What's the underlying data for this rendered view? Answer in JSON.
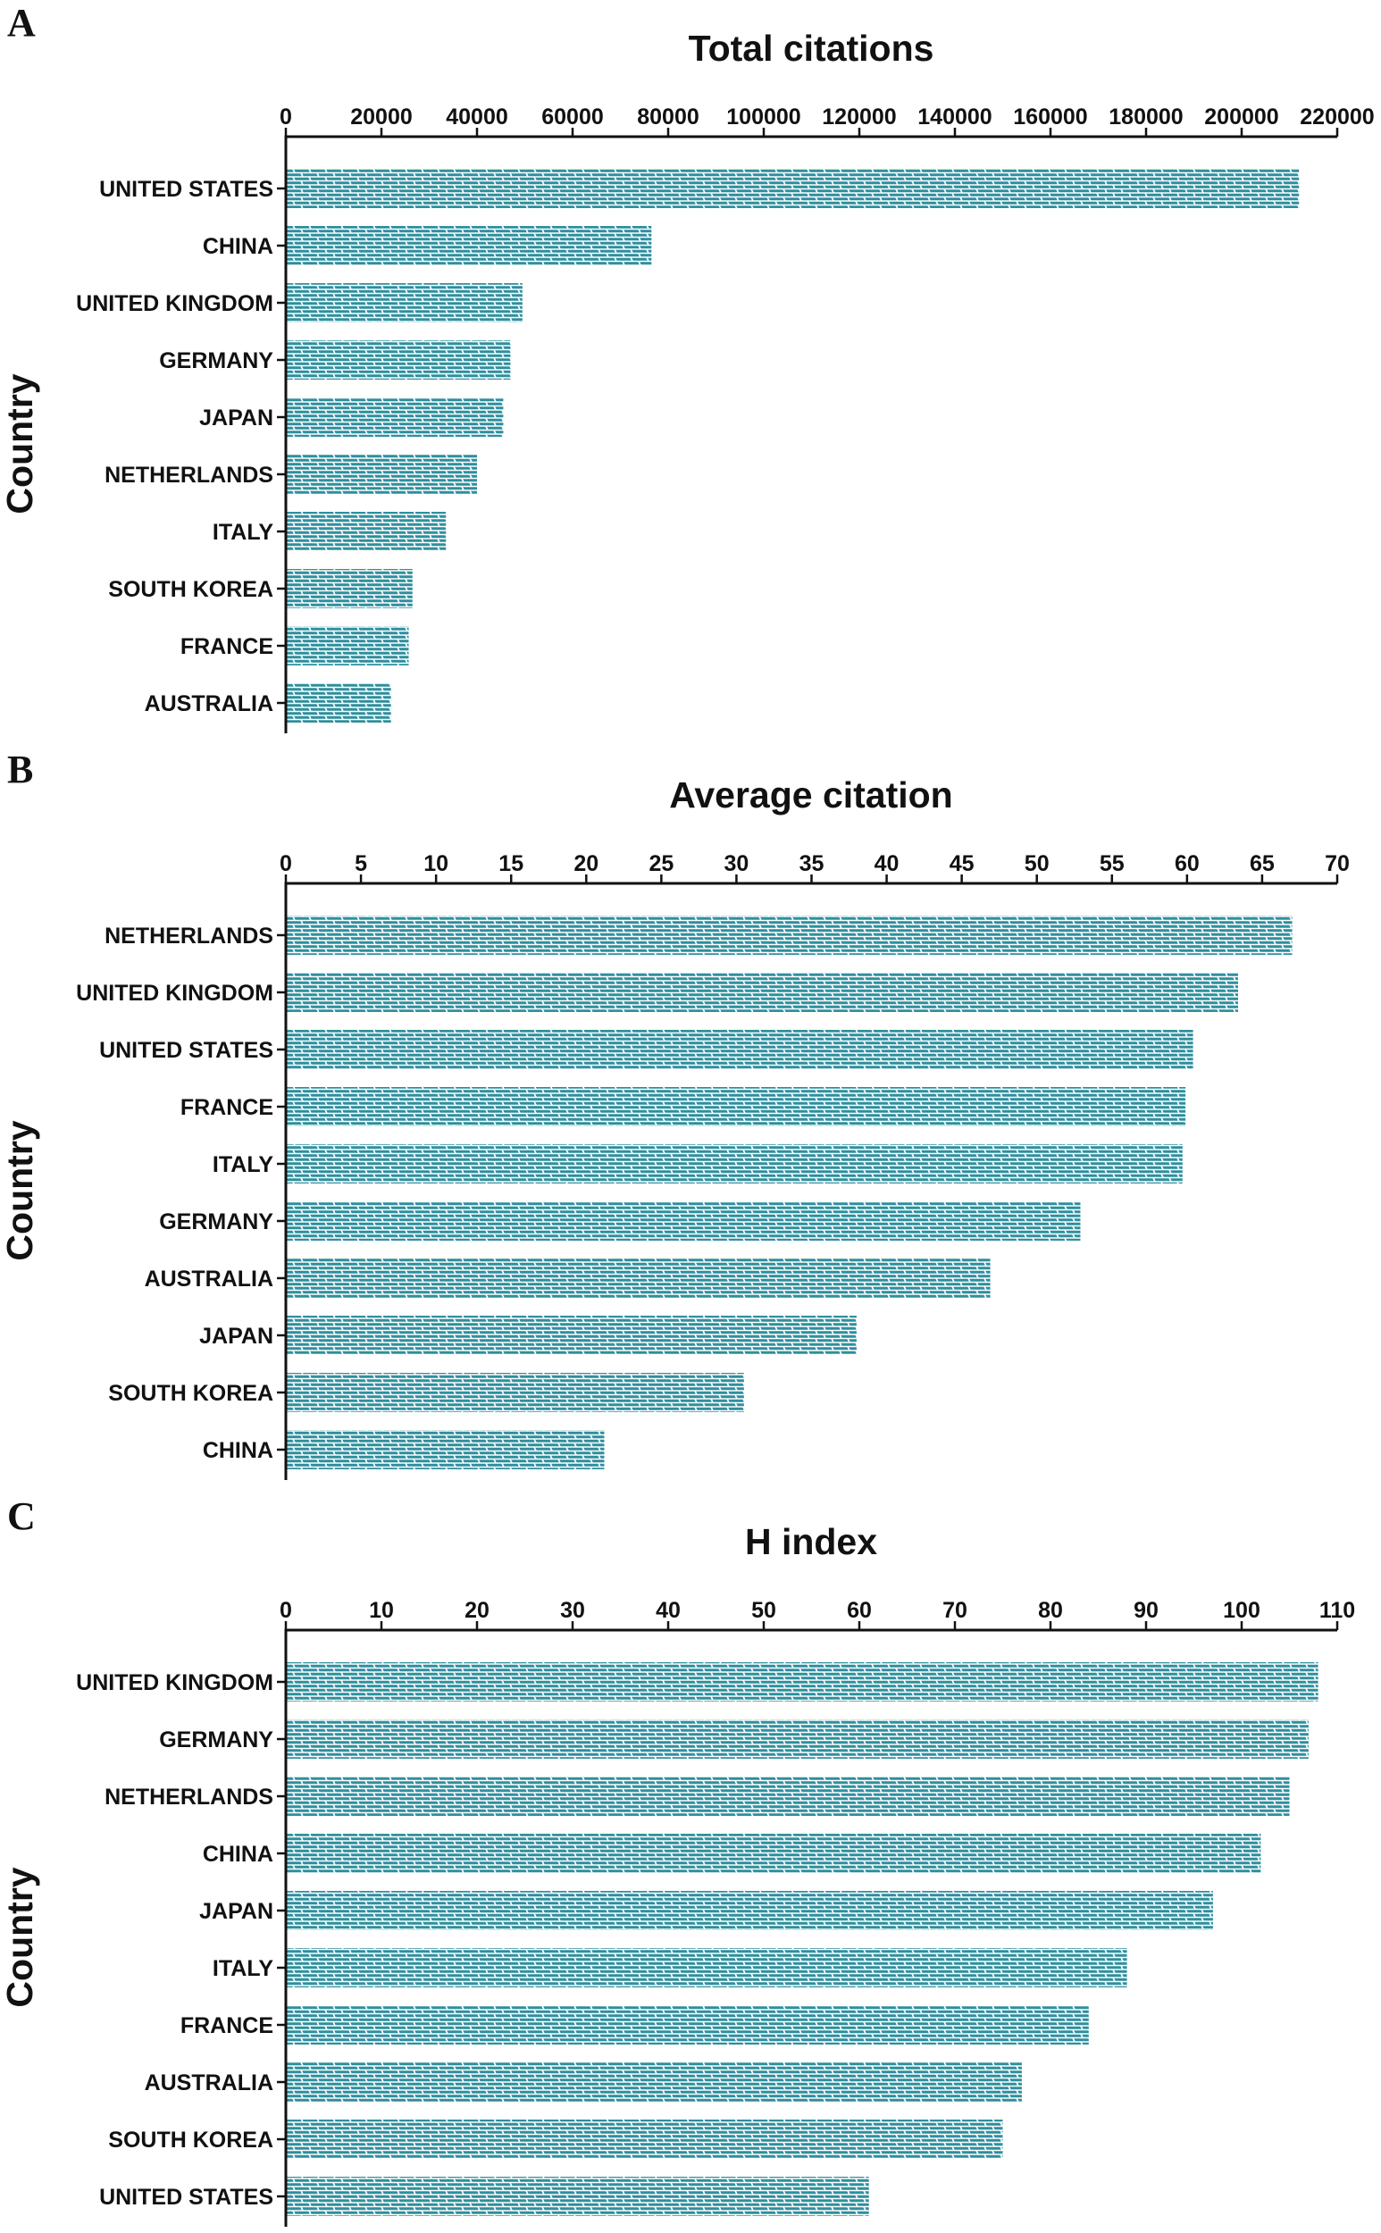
{
  "bar_color": "#2E8F9E",
  "chart_data": [
    {
      "panel": "A",
      "type": "bar",
      "orientation": "horizontal",
      "title": "Total citations",
      "ylabel": "Country",
      "xlabel": "",
      "xlim": [
        0,
        220000
      ],
      "xticks": [
        0,
        20000,
        40000,
        60000,
        80000,
        100000,
        120000,
        140000,
        160000,
        180000,
        200000,
        220000
      ],
      "categories": [
        "UNITED STATES",
        "CHINA",
        "UNITED KINGDOM",
        "GERMANY",
        "JAPAN",
        "NETHERLANDS",
        "ITALY",
        "SOUTH KOREA",
        "FRANCE",
        "AUSTRALIA"
      ],
      "values": [
        212000,
        76500,
        49500,
        47000,
        45500,
        40000,
        33500,
        26500,
        25700,
        22000
      ]
    },
    {
      "panel": "B",
      "type": "bar",
      "orientation": "horizontal",
      "title": "Average citation",
      "ylabel": "Country",
      "xlabel": "",
      "xlim": [
        0,
        70
      ],
      "xticks": [
        0,
        5,
        10,
        15,
        20,
        25,
        30,
        35,
        40,
        45,
        50,
        55,
        60,
        65,
        70
      ],
      "categories": [
        "NETHERLANDS",
        "UNITED KINGDOM",
        "UNITED STATES",
        "FRANCE",
        "ITALY",
        "GERMANY",
        "AUSTRALIA",
        "JAPAN",
        "SOUTH KOREA",
        "CHINA"
      ],
      "values": [
        67.0,
        63.4,
        60.4,
        59.9,
        59.7,
        52.9,
        46.9,
        38.0,
        30.5,
        21.2
      ]
    },
    {
      "panel": "C",
      "type": "bar",
      "orientation": "horizontal",
      "title": "H index",
      "ylabel": "Country",
      "xlabel": "",
      "xlim": [
        0,
        110
      ],
      "xticks": [
        0,
        10,
        20,
        30,
        40,
        50,
        60,
        70,
        80,
        90,
        100,
        110
      ],
      "categories": [
        "UNITED KINGDOM",
        "GERMANY",
        "NETHERLANDS",
        "CHINA",
        "JAPAN",
        "ITALY",
        "FRANCE",
        "AUSTRALIA",
        "SOUTH KOREA",
        "UNITED STATES"
      ],
      "values": [
        108,
        107,
        105,
        102,
        97,
        88,
        84,
        77,
        75,
        61
      ]
    }
  ]
}
